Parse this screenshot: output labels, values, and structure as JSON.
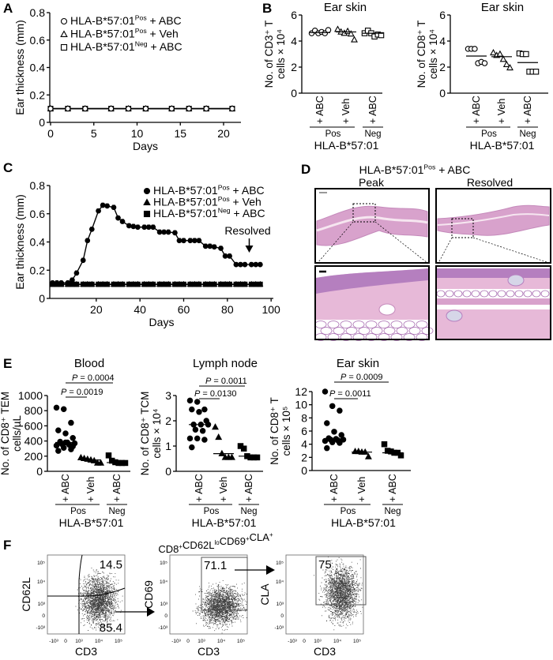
{
  "panels": {
    "a": "A",
    "b": "B",
    "c": "C",
    "d": "D",
    "e": "E",
    "f": "F"
  },
  "chart_data": [
    {
      "id": "A",
      "type": "line",
      "ylabel": "Ear thickness (mm)",
      "xlabel": "Days",
      "ylim": [
        0,
        0.8
      ],
      "yticks": [
        0,
        0.2,
        0.4,
        0.6,
        0.8
      ],
      "ytick_labels": [
        "0",
        "0.2",
        "0.4",
        "0.6",
        "0.8"
      ],
      "xlim": [
        0,
        22
      ],
      "xticks": [
        0,
        5,
        10,
        15,
        20
      ],
      "xtick_labels": [
        "0",
        "5",
        "10",
        "15",
        "20"
      ],
      "legend_position": "top-left",
      "series": [
        {
          "name": {
            "base": "HLA-B*57:01",
            "sup": "Pos",
            "suffix": " + ABC"
          },
          "marker": "circle",
          "filled": false,
          "x": [
            0,
            2,
            4,
            7,
            9,
            11,
            14,
            16,
            18,
            21
          ],
          "y": [
            0.1,
            0.1,
            0.1,
            0.1,
            0.1,
            0.1,
            0.1,
            0.1,
            0.1,
            0.1
          ]
        },
        {
          "name": {
            "base": "HLA-B*57:01",
            "sup": "Pos",
            "suffix": " + Veh"
          },
          "marker": "triangle",
          "filled": false,
          "x": [
            0,
            2,
            4,
            7,
            9,
            11,
            14,
            16,
            18,
            21
          ],
          "y": [
            0.1,
            0.1,
            0.1,
            0.1,
            0.1,
            0.1,
            0.1,
            0.1,
            0.1,
            0.1
          ]
        },
        {
          "name": {
            "base": "HLA-B*57:01",
            "sup": "Neg",
            "suffix": " + ABC"
          },
          "marker": "square",
          "filled": false,
          "x": [
            0,
            2,
            4,
            7,
            9,
            11,
            14,
            16,
            18,
            21
          ],
          "y": [
            0.1,
            0.1,
            0.1,
            0.1,
            0.1,
            0.1,
            0.1,
            0.1,
            0.1,
            0.1
          ]
        }
      ]
    },
    {
      "id": "B1",
      "type": "scatter",
      "title": "Ear skin",
      "ylabel": [
        "No. of CD3⁺ T",
        "cells × 10⁴"
      ],
      "ylim": [
        0,
        6
      ],
      "yticks": [
        0,
        2,
        4,
        6
      ],
      "ytick_labels": [
        "0",
        "2",
        "4",
        "6"
      ],
      "categories": [
        "+ ABC",
        "+ Veh",
        "+ ABC"
      ],
      "groups": [
        "Pos",
        "Neg"
      ],
      "group_title": "HLA-B*57:01",
      "markers": [
        "circle",
        "triangle",
        "square"
      ],
      "filled": false,
      "values": [
        [
          4.6,
          4.8,
          4.6,
          4.7,
          4.6,
          4.85
        ],
        [
          4.9,
          4.7,
          4.6,
          4.75,
          4.55,
          4.1
        ],
        [
          4.6,
          4.8,
          4.6,
          4.35,
          4.5,
          4.45
        ]
      ],
      "medians": [
        4.65,
        4.7,
        4.6
      ],
      "pvalues": []
    },
    {
      "id": "B2",
      "type": "scatter",
      "title": "Ear skin",
      "ylabel": [
        "No. of CD8⁺ T",
        "cells × 10⁴"
      ],
      "ylim": [
        0,
        6
      ],
      "yticks": [
        0,
        2,
        4,
        6
      ],
      "ytick_labels": [
        "0",
        "2",
        "4",
        "6"
      ],
      "categories": [
        "+ ABC",
        "+ Veh",
        "+ ABC"
      ],
      "groups": [
        "Pos",
        "Neg"
      ],
      "group_title": "HLA-B*57:01",
      "markers": [
        "circle",
        "triangle",
        "square"
      ],
      "filled": false,
      "values": [
        [
          3.4,
          3.4,
          3.4,
          2.3,
          2.4,
          2.3
        ],
        [
          3.1,
          2.9,
          3.0,
          2.6,
          2.2,
          1.95
        ],
        [
          3.05,
          3.0,
          3.0,
          1.65,
          1.65,
          1.65
        ]
      ],
      "medians": [
        2.85,
        2.8,
        2.35
      ],
      "pvalues": []
    },
    {
      "id": "C",
      "type": "line",
      "ylabel": "Ear thickness (mm)",
      "xlabel": "Days",
      "ylim": [
        0,
        0.8
      ],
      "yticks": [
        0,
        0.2,
        0.4,
        0.6,
        0.8
      ],
      "ytick_labels": [
        "0",
        "0.2",
        "0.4",
        "0.6",
        "0.8"
      ],
      "xlim": [
        0,
        100
      ],
      "xticks": [
        20,
        40,
        60,
        80,
        100
      ],
      "xtick_labels": [
        "20",
        "40",
        "60",
        "80",
        "100"
      ],
      "legend_position": "top-right",
      "annotation": {
        "text": "Resolved",
        "x": 90
      },
      "series": [
        {
          "name": {
            "base": "HLA-B*57:01",
            "sup": "Pos",
            "suffix": " + ABC"
          },
          "marker": "circle",
          "filled": true,
          "error": 0.015,
          "x": [
            0,
            2,
            4,
            7,
            9,
            11,
            14,
            16,
            18,
            21,
            23,
            25,
            28,
            30,
            32,
            35,
            37,
            39,
            42,
            44,
            46,
            49,
            51,
            53,
            56,
            58,
            60,
            63,
            65,
            67,
            70,
            72,
            74,
            77,
            79,
            81,
            84,
            86,
            88,
            91,
            93,
            95
          ],
          "y": [
            0.11,
            0.11,
            0.11,
            0.11,
            0.13,
            0.18,
            0.27,
            0.41,
            0.49,
            0.62,
            0.66,
            0.655,
            0.645,
            0.57,
            0.545,
            0.515,
            0.51,
            0.505,
            0.505,
            0.505,
            0.505,
            0.47,
            0.47,
            0.47,
            0.465,
            0.41,
            0.41,
            0.41,
            0.41,
            0.41,
            0.37,
            0.37,
            0.365,
            0.355,
            0.3,
            0.3,
            0.24,
            0.24,
            0.24,
            0.24,
            0.24,
            0.24
          ]
        },
        {
          "name": {
            "base": "HLA-B*57:01",
            "sup": "Pos",
            "suffix": " + Veh"
          },
          "marker": "triangle",
          "filled": true,
          "x": [
            0,
            2,
            4,
            7,
            9,
            11,
            14,
            16,
            18,
            21,
            23,
            25,
            28,
            30,
            32,
            35,
            37,
            39,
            42,
            44,
            46,
            49,
            51,
            53,
            56,
            58,
            60,
            63,
            65,
            67,
            70,
            72,
            74,
            77,
            79,
            81,
            84,
            86,
            88,
            91,
            93,
            95
          ],
          "y": [
            0.1,
            0.1,
            0.1,
            0.1,
            0.1,
            0.1,
            0.1,
            0.1,
            0.1,
            0.1,
            0.1,
            0.1,
            0.1,
            0.1,
            0.1,
            0.1,
            0.1,
            0.1,
            0.1,
            0.1,
            0.1,
            0.1,
            0.1,
            0.1,
            0.1,
            0.1,
            0.1,
            0.1,
            0.1,
            0.1,
            0.1,
            0.1,
            0.1,
            0.1,
            0.1,
            0.1,
            0.1,
            0.1,
            0.1,
            0.1,
            0.1,
            0.1
          ]
        },
        {
          "name": {
            "base": "HLA-B*57:01",
            "sup": "Neg",
            "suffix": " + ABC"
          },
          "marker": "square",
          "filled": true,
          "x": [
            0,
            2,
            4,
            7,
            9,
            11,
            14,
            16,
            18,
            21,
            23,
            25,
            28,
            30,
            32,
            35,
            37,
            39,
            42,
            44,
            46,
            49,
            51,
            53,
            56,
            58,
            60,
            63,
            65,
            67,
            70,
            72,
            74,
            77,
            79,
            81,
            84,
            86,
            88,
            91,
            93,
            95
          ],
          "y": [
            0.1,
            0.1,
            0.1,
            0.1,
            0.1,
            0.1,
            0.1,
            0.1,
            0.1,
            0.1,
            0.1,
            0.1,
            0.1,
            0.1,
            0.1,
            0.1,
            0.1,
            0.1,
            0.1,
            0.1,
            0.1,
            0.1,
            0.1,
            0.1,
            0.1,
            0.1,
            0.1,
            0.1,
            0.1,
            0.1,
            0.1,
            0.1,
            0.1,
            0.1,
            0.1,
            0.1,
            0.1,
            0.1,
            0.1,
            0.1,
            0.1,
            0.1
          ]
        }
      ]
    },
    {
      "id": "E1",
      "type": "scatter",
      "title": "Blood",
      "ylabel": [
        "No. of CD8⁺ TEM",
        "cells/µL"
      ],
      "ylim": [
        0,
        1000
      ],
      "yticks": [
        0,
        200,
        400,
        600,
        800,
        1000
      ],
      "ytick_labels": [
        "0",
        "200",
        "400",
        "600",
        "800",
        "1000"
      ],
      "categories": [
        "+ ABC",
        "+ Veh",
        "+ ABC"
      ],
      "groups": [
        "Pos",
        "Neg"
      ],
      "group_title": "HLA-B*57:01",
      "markers": [
        "circle",
        "triangle",
        "square"
      ],
      "filled": true,
      "values": [
        [
          840,
          820,
          640,
          540,
          500,
          440,
          390,
          380,
          370,
          360,
          350,
          340,
          310,
          290,
          270,
          380,
          330
        ],
        [
          180,
          170,
          160,
          150,
          140,
          110,
          110
        ],
        [
          210,
          140,
          120,
          110,
          110,
          110
        ]
      ],
      "medians": [
        380,
        150,
        115
      ],
      "pvalues": [
        {
          "from": 0,
          "to": 2,
          "text": "0.0004"
        },
        {
          "from": 0,
          "to": 1,
          "text": "0.0019"
        }
      ]
    },
    {
      "id": "E2",
      "type": "scatter",
      "title": "Lymph node",
      "ylabel": [
        "No. of CD8⁺ TCM",
        "cells × 10⁴"
      ],
      "ylim": [
        0,
        3
      ],
      "yticks": [
        0,
        1,
        2,
        3
      ],
      "ytick_labels": [
        "0",
        "1",
        "2",
        "3"
      ],
      "categories": [
        "+ ABC",
        "+ Veh",
        "+ ABC"
      ],
      "groups": [
        "Pos",
        "Neg"
      ],
      "group_title": "HLA-B*57:01",
      "markers": [
        "circle",
        "triangle",
        "square"
      ],
      "filled": true,
      "values": [
        [
          2.8,
          2.75,
          2.45,
          2.45,
          2.35,
          2.0,
          1.85,
          1.85,
          1.85,
          1.65,
          1.6,
          1.3,
          1.3,
          1.25,
          0.95
        ],
        [
          1.75,
          1.35,
          0.7,
          0.55,
          0.55,
          0.55
        ],
        [
          1.0,
          0.9,
          0.6,
          0.55,
          0.55,
          0.55
        ]
      ],
      "medians": [
        1.85,
        0.7,
        0.6
      ],
      "pvalues": [
        {
          "from": 0,
          "to": 2,
          "text": "0.0011"
        },
        {
          "from": 0,
          "to": 1,
          "text": "0.0130"
        }
      ]
    },
    {
      "id": "E3",
      "type": "scatter",
      "title": "Ear skin",
      "ylabel": [
        "No. of CD8⁺ T",
        "cells × 10⁵"
      ],
      "ylim": [
        0,
        12
      ],
      "yticks": [
        0,
        2,
        4,
        6,
        8,
        10,
        12
      ],
      "ytick_labels": [
        "0",
        "2",
        "4",
        "6",
        "8",
        "10",
        "12"
      ],
      "categories": [
        "+ ABC",
        "+ Veh",
        "+ ABC"
      ],
      "groups": [
        "Pos",
        "Neg"
      ],
      "group_title": "HLA-B*57:01",
      "markers": [
        "circle",
        "triangle",
        "square"
      ],
      "filled": true,
      "values": [
        [
          12,
          9.8,
          9.1,
          7.2,
          5.9,
          5.4,
          4.9,
          4.8,
          4.7,
          4.7,
          4.6,
          4.5,
          4.3,
          4.2,
          3.4
        ],
        [
          2.9,
          2.9,
          2.8,
          2.8,
          2.1
        ],
        [
          4.0,
          3.0,
          2.9,
          2.7,
          2.7,
          2.3
        ]
      ],
      "medians": [
        4.8,
        2.8,
        2.7
      ],
      "pvalues": [
        {
          "from": 0,
          "to": 2,
          "text": "0.0009"
        },
        {
          "from": 0,
          "to": 1,
          "text": "0.0011"
        }
      ]
    }
  ],
  "histology": {
    "title": {
      "base": "HLA-B*57:01",
      "sup": "Pos",
      "suffix": " + ABC"
    },
    "columns": [
      "Peak",
      "Resolved"
    ],
    "colors": {
      "tissue": "#d8a2cc",
      "dermis": "#e7b9d8",
      "epidermis": "#b57fbf",
      "fat": "#ffffff"
    }
  },
  "flow": {
    "title": {
      "parts": [
        [
          "CD8",
          "+"
        ],
        [
          "CD62L",
          "lo"
        ],
        [
          "CD69",
          "+"
        ],
        [
          "CLA",
          "+"
        ]
      ]
    },
    "tick_labels": [
      "-10³",
      "0",
      "10³",
      "10⁴",
      "10⁵"
    ],
    "plots": [
      {
        "ylabel": "CD62L",
        "xlabel": "CD3",
        "gates": [
          {
            "value": "14.5"
          },
          {
            "value": "85.4"
          }
        ]
      },
      {
        "ylabel": "CD69",
        "xlabel": "CD3",
        "gates": [
          {
            "value": "71.1"
          }
        ]
      },
      {
        "ylabel": "CLA",
        "xlabel": "CD3",
        "gates": [
          {
            "value": "75"
          }
        ]
      }
    ]
  }
}
